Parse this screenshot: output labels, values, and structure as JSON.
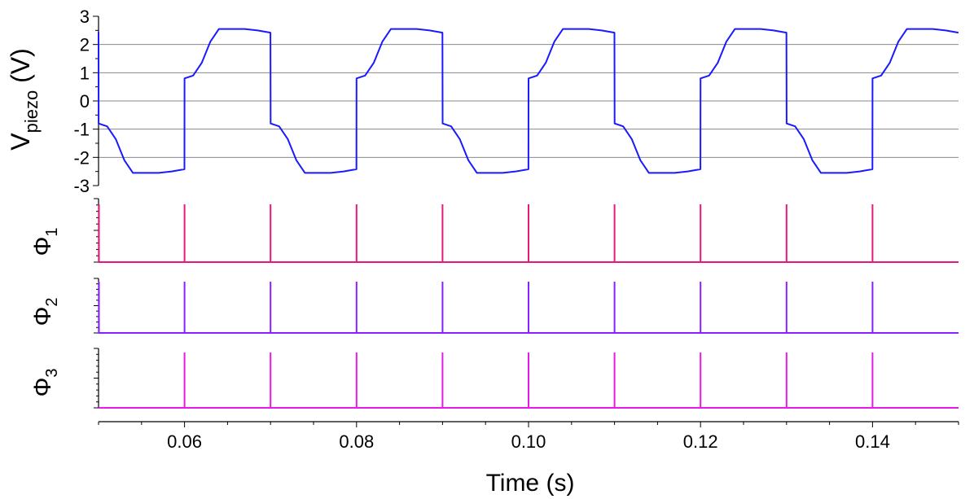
{
  "chart_data": {
    "type": "line",
    "xlabel": "Time (s)",
    "xlim": [
      0.05,
      0.15
    ],
    "xticks": [
      "0.06",
      "0.08",
      "0.10",
      "0.12",
      "0.14"
    ],
    "x_minor_step": 0.005,
    "panels": [
      {
        "id": "vpiezo",
        "ylabel_main": "V",
        "ylabel_sub": "piezo",
        "ylabel_unit": " (V)",
        "ylim": [
          -3,
          3
        ],
        "yticks": [
          "3",
          "2",
          "1",
          "0",
          "-1",
          "-2",
          "-3"
        ],
        "grid": true,
        "color": "#1a1aff",
        "series": [
          {
            "period": 0.02,
            "start": 0.05,
            "end": 0.15,
            "initial_spike": 2.45,
            "waveform_points": [
              [
                0.0,
                2.45
              ],
              [
                1e-05,
                -0.8
              ],
              [
                0.001,
                -0.9
              ],
              [
                0.002,
                -1.35
              ],
              [
                0.003,
                -2.1
              ],
              [
                0.004,
                -2.55
              ],
              [
                0.007,
                -2.55
              ],
              [
                0.0085,
                -2.5
              ],
              [
                0.00999,
                -2.42
              ],
              [
                0.01,
                0.8
              ],
              [
                0.011,
                0.9
              ],
              [
                0.012,
                1.35
              ],
              [
                0.013,
                2.1
              ],
              [
                0.014,
                2.55
              ],
              [
                0.017,
                2.55
              ],
              [
                0.0185,
                2.5
              ],
              [
                0.01999,
                2.42
              ]
            ]
          }
        ]
      },
      {
        "id": "phi1",
        "ylabel_main": "Φ",
        "ylabel_sub": "1",
        "color": "#e6197a",
        "pulse_times": [
          0.05,
          0.06,
          0.07,
          0.08,
          0.09,
          0.1,
          0.11,
          0.12,
          0.13,
          0.14
        ]
      },
      {
        "id": "phi2",
        "ylabel_main": "Φ",
        "ylabel_sub": "2",
        "color": "#8a1fff",
        "pulse_times": [
          0.05,
          0.06,
          0.07,
          0.08,
          0.09,
          0.1,
          0.11,
          0.12,
          0.13,
          0.14
        ]
      },
      {
        "id": "phi3",
        "ylabel_main": "Φ",
        "ylabel_sub": "3",
        "color": "#e619e6",
        "pulse_times": [
          0.06,
          0.07,
          0.08,
          0.09,
          0.1,
          0.11,
          0.12,
          0.13,
          0.14
        ]
      }
    ]
  }
}
